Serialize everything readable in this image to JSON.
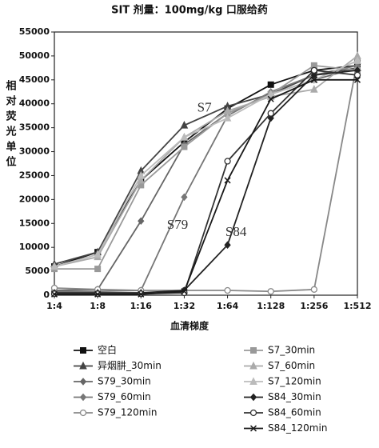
{
  "chart_data": {
    "type": "line",
    "title": "SIT 剂量：100mg/kg 口服给药",
    "x_label": "血清梯度",
    "y_label": "相对荧光单位",
    "categories": [
      "1:4",
      "1:8",
      "1:16",
      "1:32",
      "1:64",
      "1:128",
      "1:256",
      "1:512"
    ],
    "ylim": [
      0,
      55000
    ],
    "yticks": [
      0,
      5000,
      10000,
      15000,
      20000,
      25000,
      30000,
      35000,
      40000,
      45000,
      50000,
      55000
    ],
    "annotations": [
      {
        "text": "S7",
        "category_index": 3.3,
        "y": 39000
      },
      {
        "text": "S79",
        "category_index": 2.6,
        "y": 14500
      },
      {
        "text": "S84",
        "category_index": 3.95,
        "y": 13000
      }
    ],
    "series": [
      {
        "name": "空白",
        "color": "#111111",
        "marker": "square",
        "values": [
          6000,
          9000,
          24000,
          32000,
          39000,
          44000,
          47000,
          48000
        ]
      },
      {
        "name": "异烟肼_30min",
        "color": "#444444",
        "marker": "triangle",
        "values": [
          6500,
          9000,
          26000,
          35500,
          39500,
          42000,
          46000,
          47500
        ]
      },
      {
        "name": "S79_30min",
        "color": "#666666",
        "marker": "diamond",
        "values": [
          1000,
          1200,
          15500,
          31500,
          38000,
          42000,
          45000,
          47500
        ]
      },
      {
        "name": "S79_60min",
        "color": "#777777",
        "marker": "diamond",
        "values": [
          800,
          800,
          1000,
          20500,
          37500,
          42500,
          46000,
          48000
        ]
      },
      {
        "name": "S79_120min",
        "color": "#888888",
        "marker": "circle",
        "values": [
          1500,
          1200,
          1000,
          1000,
          1000,
          800,
          1200,
          49000
        ]
      },
      {
        "name": "S7_30min",
        "color": "#999999",
        "marker": "square",
        "values": [
          5500,
          5500,
          23000,
          31000,
          38000,
          42000,
          48000,
          47000
        ]
      },
      {
        "name": "S7_60min",
        "color": "#aaaaaa",
        "marker": "triangle",
        "values": [
          6000,
          8000,
          24000,
          33000,
          38500,
          41500,
          43000,
          50000
        ]
      },
      {
        "name": "S7_120min",
        "color": "#bbbbbb",
        "marker": "triangle",
        "values": [
          6000,
          8500,
          25000,
          33000,
          37000,
          42000,
          45000,
          49000
        ]
      },
      {
        "name": "S84_30min",
        "color": "#222222",
        "marker": "diamond",
        "values": [
          500,
          500,
          500,
          1000,
          10500,
          37000,
          46000,
          47000
        ]
      },
      {
        "name": "S84_60min",
        "color": "#333333",
        "marker": "circle",
        "values": [
          300,
          300,
          300,
          500,
          28000,
          38000,
          47000,
          46000
        ]
      },
      {
        "name": "S84_120min",
        "color": "#1a1a1a",
        "marker": "x",
        "values": [
          200,
          200,
          200,
          800,
          24000,
          41000,
          45000,
          45000
        ]
      }
    ]
  }
}
